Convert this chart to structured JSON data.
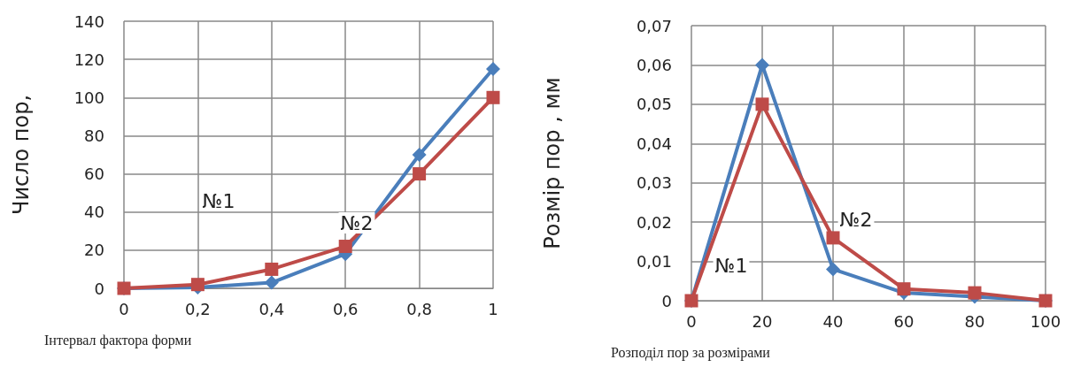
{
  "chart_data": [
    {
      "type": "line",
      "xlabel": "Інтервал фактора форми",
      "ylabel": "Число пор,",
      "x": [
        0,
        0.2,
        0.4,
        0.6,
        0.8,
        1
      ],
      "series": [
        {
          "color": "#4a7ebb",
          "marker": "diamond",
          "values": [
            0,
            0.5,
            3,
            18,
            70,
            115
          ]
        },
        {
          "color": "#be4b48",
          "marker": "square",
          "values": [
            0,
            2,
            10,
            22,
            60,
            100
          ]
        }
      ],
      "xlim": [
        0,
        1
      ],
      "xticks": [
        0,
        {
          "value": 0.2,
          "label": "0,2"
        },
        {
          "value": 0.4,
          "label": "0,4"
        },
        {
          "value": 0.6,
          "label": "0,6"
        },
        {
          "value": 0.8,
          "label": "0,8"
        },
        1
      ],
      "ylim": [
        0,
        140
      ],
      "yticks": [
        0,
        20,
        40,
        60,
        80,
        100,
        120,
        140
      ],
      "grid": true,
      "annotations": [
        "№1",
        "№2"
      ]
    },
    {
      "type": "line",
      "xlabel": "Розподіл пор за розмірами",
      "ylabel": "Розмір пор , мм",
      "x": [
        0,
        20,
        40,
        60,
        80,
        100
      ],
      "series": [
        {
          "color": "#4a7ebb",
          "marker": "diamond",
          "values": [
            0,
            0.06,
            0.008,
            0.002,
            0.001,
            0
          ]
        },
        {
          "color": "#be4b48",
          "marker": "square",
          "values": [
            0,
            0.05,
            0.016,
            0.003,
            0.002,
            0
          ]
        }
      ],
      "xlim": [
        0,
        100
      ],
      "xticks": [
        0,
        20,
        40,
        60,
        80,
        100
      ],
      "ylim": [
        0,
        0.07
      ],
      "yticks": [
        0,
        {
          "value": 0.01,
          "label": "0,01"
        },
        {
          "value": 0.02,
          "label": "0,02"
        },
        {
          "value": 0.03,
          "label": "0,03"
        },
        {
          "value": 0.04,
          "label": "0,04"
        },
        {
          "value": 0.05,
          "label": "0,05"
        },
        {
          "value": 0.06,
          "label": "0,06"
        },
        {
          "value": 0.07,
          "label": "0,07"
        }
      ],
      "grid": true,
      "annotations": [
        "№1",
        "№2"
      ]
    }
  ]
}
